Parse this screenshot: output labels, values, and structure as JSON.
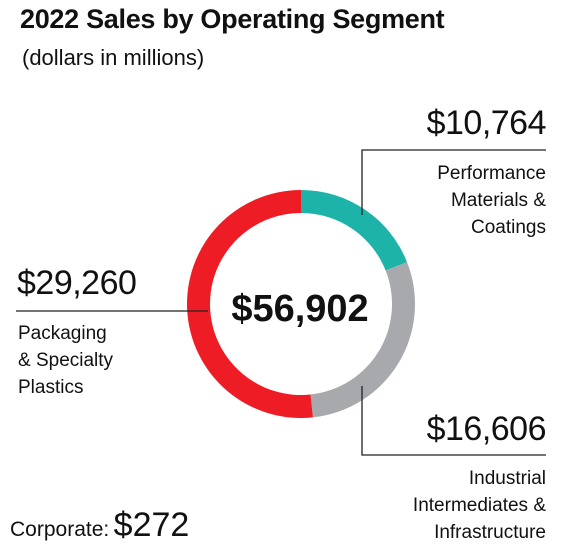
{
  "chart_data": {
    "type": "pie",
    "title": "2022 Sales by Operating Segment",
    "subtitle": "(dollars in millions)",
    "total_label": "$56,902",
    "segments": [
      {
        "label": [
          "Performance",
          "Materials &",
          "Coatings"
        ],
        "value": 10764,
        "value_label": "$10,764",
        "color": "#1db3a9"
      },
      {
        "label": [
          "Industrial",
          "Intermediates &",
          "Infrastructure"
        ],
        "value": 16606,
        "value_label": "$16,606",
        "color": "#a7a9ac"
      },
      {
        "label": [
          "Packaging",
          "& Specialty",
          "Plastics"
        ],
        "value": 29260,
        "value_label": "$29,260",
        "color": "#ee1c25"
      }
    ],
    "corporate": {
      "label": "Corporate:",
      "value": 272,
      "value_label": "$272"
    }
  }
}
